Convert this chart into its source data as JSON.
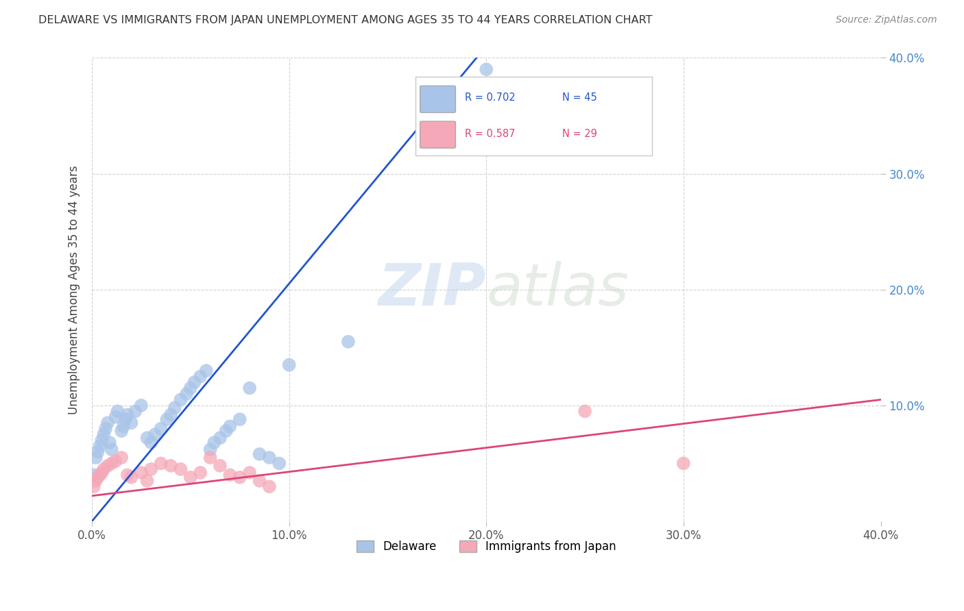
{
  "title": "DELAWARE VS IMMIGRANTS FROM JAPAN UNEMPLOYMENT AMONG AGES 35 TO 44 YEARS CORRELATION CHART",
  "source": "Source: ZipAtlas.com",
  "ylabel": "Unemployment Among Ages 35 to 44 years",
  "legend_label_blue": "Delaware",
  "legend_label_pink": "Immigrants from Japan",
  "R_blue": 0.702,
  "N_blue": 45,
  "R_pink": 0.587,
  "N_pink": 29,
  "color_blue": "#a8c4e8",
  "color_pink": "#f4a8b8",
  "line_color_blue": "#2255cc",
  "line_color_pink": "#dd4477",
  "xlim": [
    0.0,
    0.4
  ],
  "ylim": [
    0.0,
    0.4
  ],
  "xticks": [
    0.0,
    0.1,
    0.2,
    0.3,
    0.4
  ],
  "yticks": [
    0.1,
    0.2,
    0.3,
    0.4
  ],
  "tick_labels_x": [
    "0.0%",
    "10.0%",
    "20.0%",
    "30.0%",
    "40.0%"
  ],
  "tick_labels_y": [
    "10.0%",
    "20.0%",
    "30.0%",
    "40.0%"
  ],
  "watermark_zip": "ZIP",
  "watermark_atlas": "atlas",
  "background_color": "#ffffff",
  "blue_x": [
    0.001,
    0.002,
    0.003,
    0.004,
    0.005,
    0.006,
    0.007,
    0.008,
    0.009,
    0.01,
    0.012,
    0.013,
    0.015,
    0.016,
    0.017,
    0.018,
    0.02,
    0.022,
    0.025,
    0.028,
    0.03,
    0.032,
    0.035,
    0.038,
    0.04,
    0.042,
    0.045,
    0.048,
    0.05,
    0.052,
    0.055,
    0.058,
    0.06,
    0.062,
    0.065,
    0.068,
    0.07,
    0.075,
    0.08,
    0.085,
    0.09,
    0.095,
    0.1,
    0.13,
    0.2
  ],
  "blue_y": [
    0.04,
    0.055,
    0.06,
    0.065,
    0.07,
    0.075,
    0.08,
    0.085,
    0.068,
    0.062,
    0.09,
    0.095,
    0.078,
    0.082,
    0.088,
    0.092,
    0.085,
    0.095,
    0.1,
    0.072,
    0.068,
    0.075,
    0.08,
    0.088,
    0.092,
    0.098,
    0.105,
    0.11,
    0.115,
    0.12,
    0.125,
    0.13,
    0.062,
    0.068,
    0.072,
    0.078,
    0.082,
    0.088,
    0.115,
    0.058,
    0.055,
    0.05,
    0.135,
    0.155,
    0.39
  ],
  "pink_x": [
    0.001,
    0.002,
    0.003,
    0.004,
    0.005,
    0.006,
    0.008,
    0.01,
    0.012,
    0.015,
    0.018,
    0.02,
    0.025,
    0.028,
    0.03,
    0.035,
    0.04,
    0.045,
    0.05,
    0.055,
    0.06,
    0.065,
    0.07,
    0.075,
    0.08,
    0.085,
    0.09,
    0.25,
    0.3
  ],
  "pink_y": [
    0.03,
    0.035,
    0.038,
    0.04,
    0.042,
    0.045,
    0.048,
    0.05,
    0.052,
    0.055,
    0.04,
    0.038,
    0.042,
    0.035,
    0.045,
    0.05,
    0.048,
    0.045,
    0.038,
    0.042,
    0.055,
    0.048,
    0.04,
    0.038,
    0.042,
    0.035,
    0.03,
    0.095,
    0.05
  ],
  "blue_line_x": [
    0.0,
    0.195
  ],
  "blue_line_y": [
    0.0,
    0.4
  ],
  "pink_line_x": [
    0.0,
    0.4
  ],
  "pink_line_y": [
    0.022,
    0.105
  ]
}
